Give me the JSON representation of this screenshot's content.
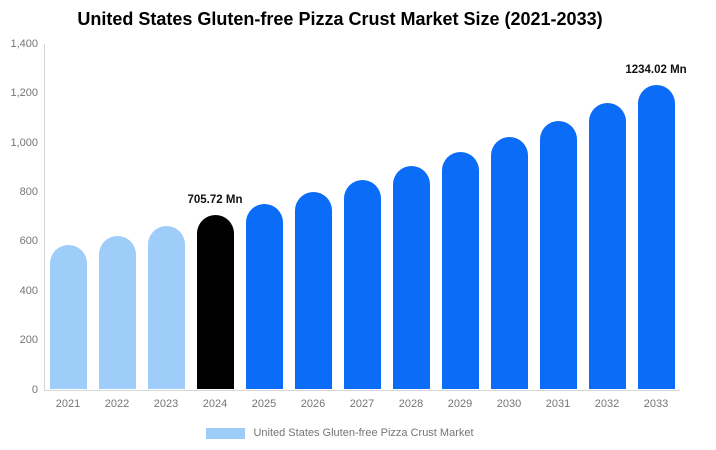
{
  "chart_data": {
    "type": "bar",
    "title": "United States Gluten-free Pizza Crust Market Size (2021-2033)",
    "xlabel": "",
    "ylabel": "",
    "unit": "Mn",
    "ylim": [
      0,
      1400
    ],
    "grid": false,
    "legend_position": "bottom-center",
    "yticks": [
      {
        "v": 0,
        "label": "0"
      },
      {
        "v": 200,
        "label": "200"
      },
      {
        "v": 400,
        "label": "400"
      },
      {
        "v": 600,
        "label": "600"
      },
      {
        "v": 800,
        "label": "800"
      },
      {
        "v": 1000,
        "label": "1,000"
      },
      {
        "v": 1200,
        "label": "1,200"
      },
      {
        "v": 1400,
        "label": "1,400"
      }
    ],
    "categories": [
      "2021",
      "2022",
      "2023",
      "2024",
      "2025",
      "2026",
      "2027",
      "2028",
      "2029",
      "2030",
      "2031",
      "2032",
      "2033"
    ],
    "points": [
      {
        "year": "2021",
        "value": 586,
        "role": "historical"
      },
      {
        "year": "2022",
        "value": 623,
        "role": "historical"
      },
      {
        "year": "2023",
        "value": 663,
        "role": "historical"
      },
      {
        "year": "2024",
        "value": 705.72,
        "role": "base_year",
        "label": "705.72 Mn"
      },
      {
        "year": "2025",
        "value": 751,
        "role": "forecast"
      },
      {
        "year": "2026",
        "value": 799,
        "role": "forecast"
      },
      {
        "year": "2027",
        "value": 850,
        "role": "forecast"
      },
      {
        "year": "2028",
        "value": 905,
        "role": "forecast"
      },
      {
        "year": "2029",
        "value": 963,
        "role": "forecast"
      },
      {
        "year": "2030",
        "value": 1024,
        "role": "forecast"
      },
      {
        "year": "2031",
        "value": 1090,
        "role": "forecast"
      },
      {
        "year": "2032",
        "value": 1160,
        "role": "forecast"
      },
      {
        "year": "2033",
        "value": 1234.02,
        "role": "forecast",
        "label": "1234.02 Mn"
      }
    ],
    "colors": {
      "historical": "#9ECDFA",
      "base_year": "#000000",
      "forecast": "#0A6CF7",
      "axis_line": "#D6D6D6",
      "tick_text": "#757575",
      "title_text": "#000000",
      "data_label_text": "#111111"
    },
    "legend": {
      "label": "United States Gluten-free Pizza Crust Market",
      "swatch_color": "#9ECDFA"
    }
  }
}
